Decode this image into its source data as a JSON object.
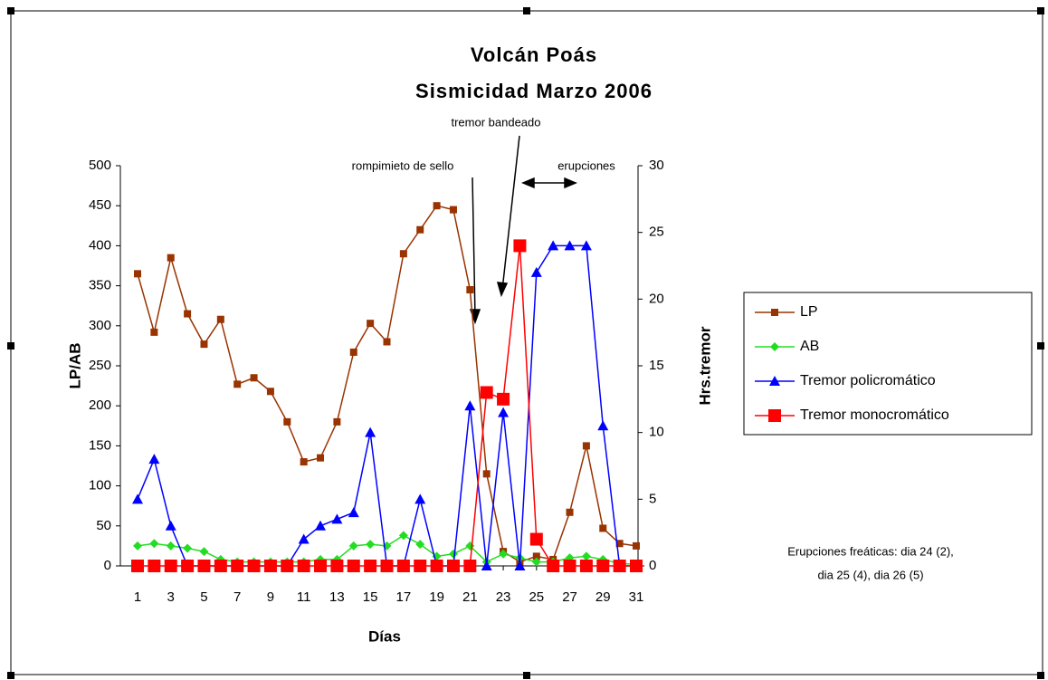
{
  "chart_data": {
    "type": "line",
    "title": [
      "Volcán Poás",
      "Sismicidad Marzo 2006"
    ],
    "x_label": "Días",
    "y_label": "LP/AB",
    "y2_label": "Hrs.tremor",
    "annotations": [
      "rompimieto de sello",
      "tremor bandeado",
      "erupciones"
    ],
    "note": [
      "Erupciones freáticas: dia 24 (2),",
      "dia 25 (4), dia 26 (5)"
    ],
    "x": [
      1,
      2,
      3,
      4,
      5,
      6,
      7,
      8,
      9,
      10,
      11,
      12,
      13,
      14,
      15,
      16,
      17,
      18,
      19,
      20,
      21,
      22,
      23,
      24,
      25,
      26,
      27,
      28,
      29,
      30,
      31
    ],
    "xlim": [
      1,
      31
    ],
    "xticks": [
      1,
      3,
      5,
      7,
      9,
      11,
      13,
      15,
      17,
      19,
      21,
      23,
      25,
      27,
      29,
      31
    ],
    "ylim": [
      0,
      500
    ],
    "yticks": [
      0,
      50,
      100,
      150,
      200,
      250,
      300,
      350,
      400,
      450,
      500
    ],
    "y2lim": [
      0,
      30
    ],
    "y2ticks": [
      0,
      5,
      10,
      15,
      20,
      25,
      30
    ],
    "legend": "right",
    "series": [
      {
        "name": "LP",
        "color": "#993300",
        "marker": "square",
        "values": [
          365,
          292,
          385,
          315,
          277,
          308,
          227,
          235,
          218,
          180,
          130,
          135,
          180,
          267,
          303,
          280,
          390,
          420,
          450,
          445,
          345,
          115,
          18,
          5,
          12,
          8,
          67,
          150,
          47,
          28,
          25
        ]
      },
      {
        "name": "AB",
        "color": "#22dd22",
        "marker": "diamond",
        "values": [
          25,
          28,
          25,
          22,
          18,
          8,
          5,
          5,
          5,
          5,
          5,
          8,
          8,
          25,
          27,
          25,
          38,
          27,
          12,
          15,
          25,
          5,
          15,
          10,
          5,
          5,
          10,
          12,
          8,
          3,
          2
        ]
      },
      {
        "name": "Tremor policromático",
        "color": "#0000ff",
        "marker": "triangle",
        "axis": "y2",
        "values": [
          5,
          8,
          3,
          0,
          0,
          0,
          0,
          0,
          0,
          0,
          2,
          3,
          3.5,
          4,
          10,
          0,
          0,
          5,
          0,
          0,
          12,
          0,
          11.5,
          0,
          22,
          24,
          24,
          24,
          10.5,
          0,
          0
        ]
      },
      {
        "name": "Tremor monocromático",
        "color": "#ff0000",
        "marker": "bigsquare",
        "axis": "y2",
        "values": [
          0,
          0,
          0,
          0,
          0,
          0,
          0,
          0,
          0,
          0,
          0,
          0,
          0,
          0,
          0,
          0,
          0,
          0,
          0,
          0,
          0,
          13,
          12.5,
          24,
          2,
          0,
          0,
          0,
          0,
          0,
          0
        ]
      }
    ]
  }
}
